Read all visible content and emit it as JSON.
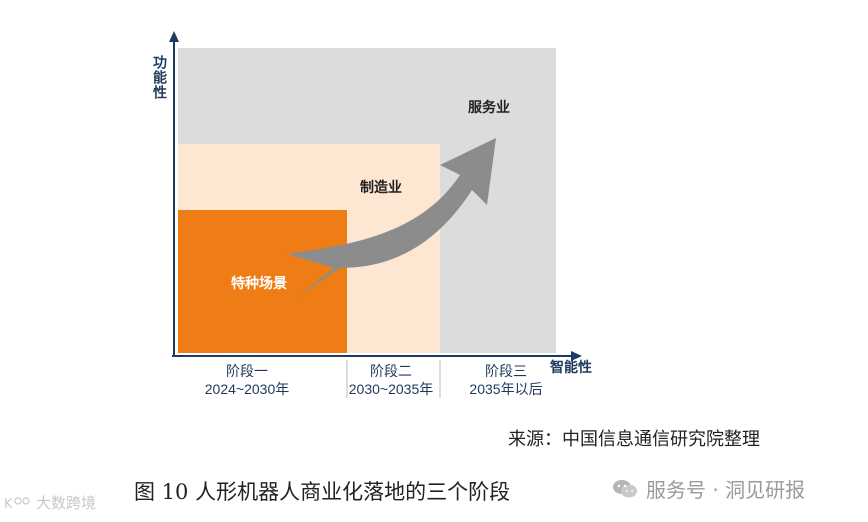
{
  "diagram": {
    "y_axis_label": "功能性",
    "x_axis_label": "智能性",
    "zones": [
      {
        "label": "特种场景",
        "color": "#ef7d16"
      },
      {
        "label": "制造业",
        "color": "#fde7d2"
      },
      {
        "label": "服务业",
        "color": "#dcdcdc"
      }
    ],
    "stages": [
      {
        "name": "阶段一",
        "period": "2024~2030年"
      },
      {
        "name": "阶段二",
        "period": "2030~2035年"
      },
      {
        "name": "阶段三",
        "period": "2035年以后"
      }
    ],
    "arrow_color": "#8c8c8c",
    "axis_color": "#1f3a5f"
  },
  "source_note": "来源：中国信息通信研究院整理",
  "caption": "图 10 人形机器人商业化落地的三个阶段",
  "watermark_right": "服务号 · 洞见研报",
  "watermark_left": "大数跨境"
}
